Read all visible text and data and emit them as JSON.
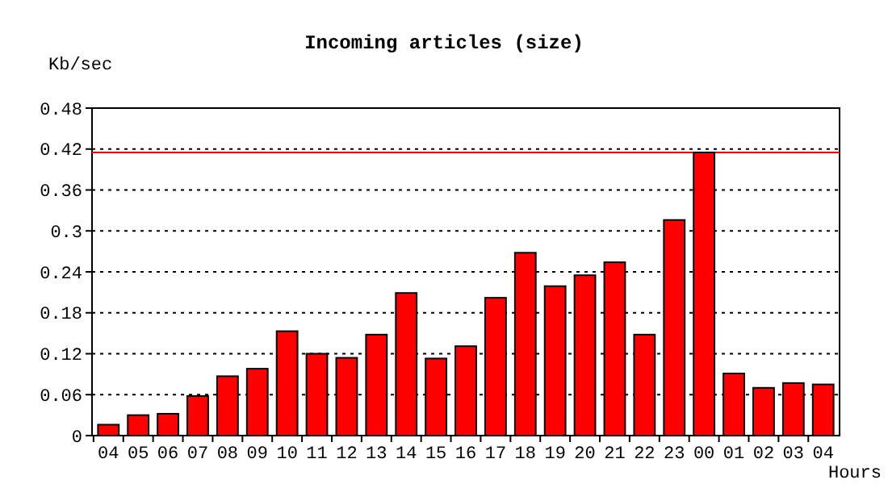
{
  "chart_data": {
    "type": "bar",
    "title": "Incoming articles (size)",
    "ylabel": "Kb/sec",
    "xlabel": "Hours",
    "categories": [
      "04",
      "05",
      "06",
      "07",
      "08",
      "09",
      "10",
      "11",
      "12",
      "13",
      "14",
      "15",
      "16",
      "17",
      "18",
      "19",
      "20",
      "21",
      "22",
      "23",
      "00",
      "01",
      "02",
      "03",
      "04"
    ],
    "values": [
      0.016,
      0.03,
      0.032,
      0.058,
      0.087,
      0.098,
      0.153,
      0.12,
      0.114,
      0.148,
      0.209,
      0.113,
      0.131,
      0.202,
      0.268,
      0.219,
      0.235,
      0.254,
      0.148,
      0.316,
      0.415,
      0.091,
      0.07,
      0.077,
      0.075
    ],
    "color": "#ff0000",
    "ylim": [
      0,
      0.48
    ],
    "yticks": [
      0,
      0.06,
      0.12,
      0.18,
      0.24,
      0.3,
      0.36,
      0.42,
      0.48
    ],
    "grid": "y",
    "ref_lines": [
      {
        "axis": "y",
        "value": 0.415,
        "color": "#ff0000"
      }
    ]
  }
}
